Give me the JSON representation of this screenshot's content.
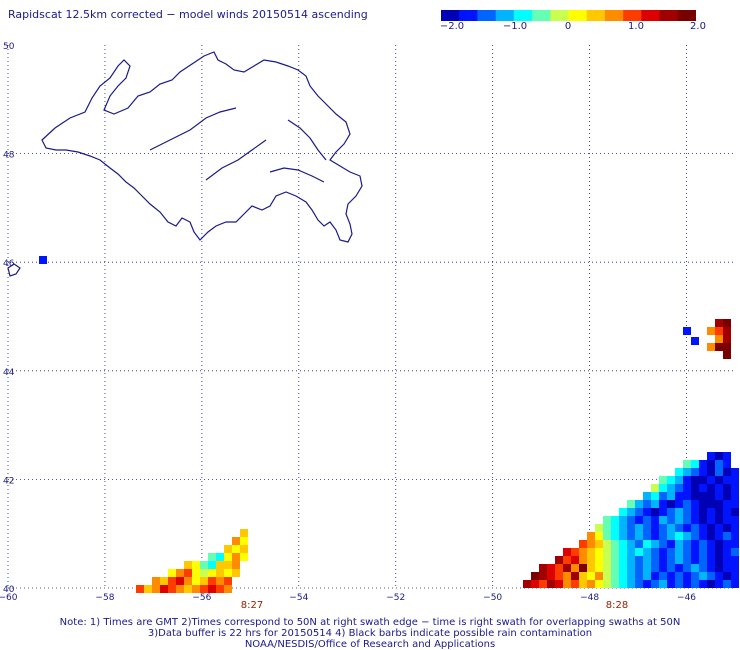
{
  "title": "Rapidscat 12.5km corrected − model winds 20150514 ascending",
  "colorbar": {
    "ticks": [
      "−2.0",
      "−1.0",
      "0",
      "1.0",
      "2.0"
    ],
    "colors": [
      "#0000b4",
      "#0014ff",
      "#0064ff",
      "#00b4ff",
      "#00ffff",
      "#64ffb4",
      "#c8ff50",
      "#ffff00",
      "#ffc800",
      "#ff8c00",
      "#ff3c00",
      "#dc0000",
      "#a00000",
      "#7a0000"
    ]
  },
  "axes": {
    "lat_labels": [
      "50",
      "48",
      "46",
      "44",
      "42",
      "40"
    ],
    "lon_labels": [
      "−60",
      "−58",
      "−56",
      "−54",
      "−52",
      "−50",
      "−48",
      "−46"
    ]
  },
  "swath_times": [
    "8:27",
    "8:28"
  ],
  "notes": [
    "Note: 1) Times are GMT 2)Times correspond to 50N at right swath edge − time is right swath for overlapping swaths at 50N",
    "3)Data buffer is 22 hrs for 20150514 4) Black barbs indicate possible rain contamination",
    "NOAA/NESDIS/Office of Research and Applications"
  ]
}
